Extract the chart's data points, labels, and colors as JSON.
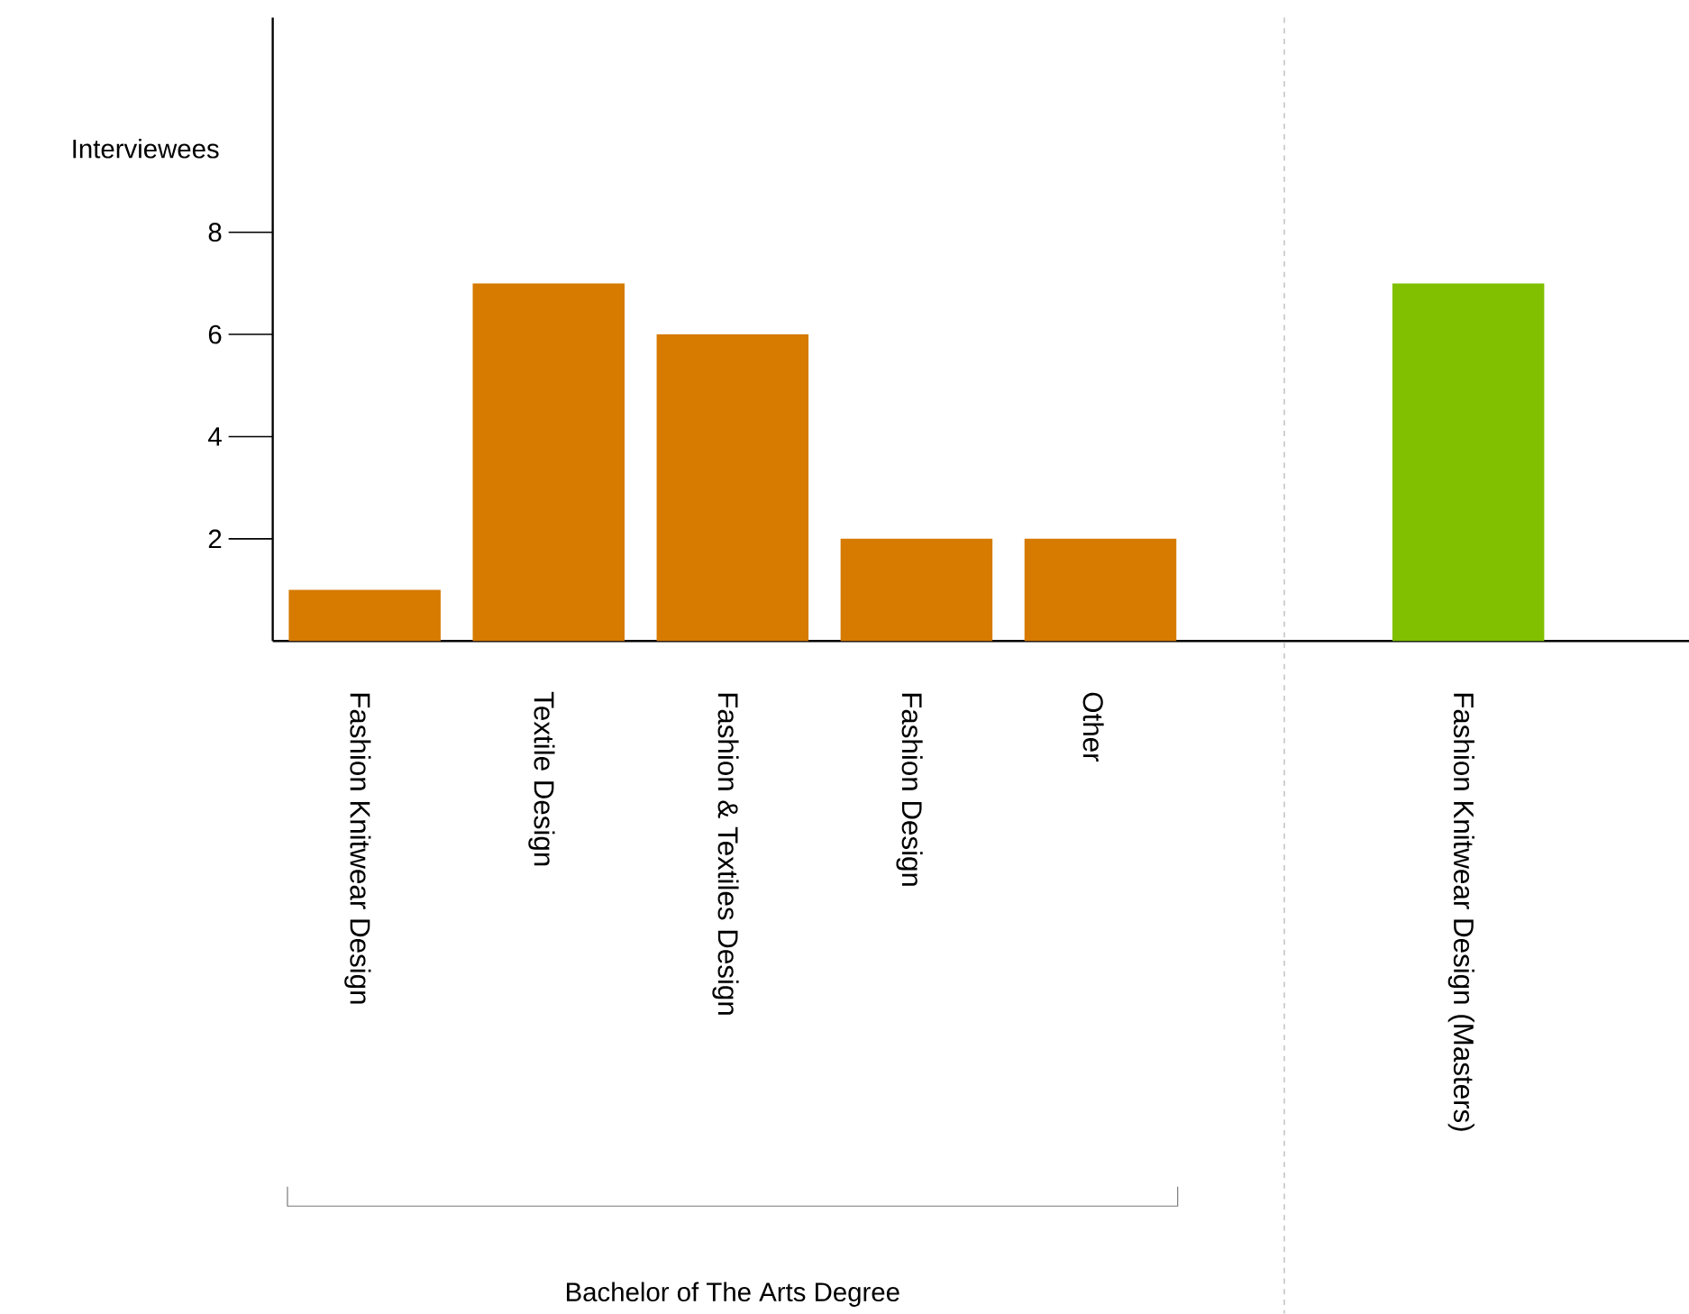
{
  "chart_data": {
    "type": "bar",
    "ylabel": "Interviewees",
    "categories": [
      "Fashion Knitwear Design",
      "Textile Design",
      "Fashion & Textiles Design",
      "Fashion Design",
      "Other",
      null,
      "Fashion Knitwear Design (Masters)"
    ],
    "values": [
      1,
      7,
      6,
      2,
      2,
      null,
      7
    ],
    "colors": [
      "#d67a00",
      "#d67a00",
      "#d67a00",
      "#d67a00",
      "#d67a00",
      "#d67a00",
      "#80c000"
    ],
    "ylim": [
      0,
      12.2
    ],
    "yticks": [
      2,
      4,
      6,
      8
    ],
    "annotations": [
      "Bachelor of The Arts Degree"
    ]
  }
}
